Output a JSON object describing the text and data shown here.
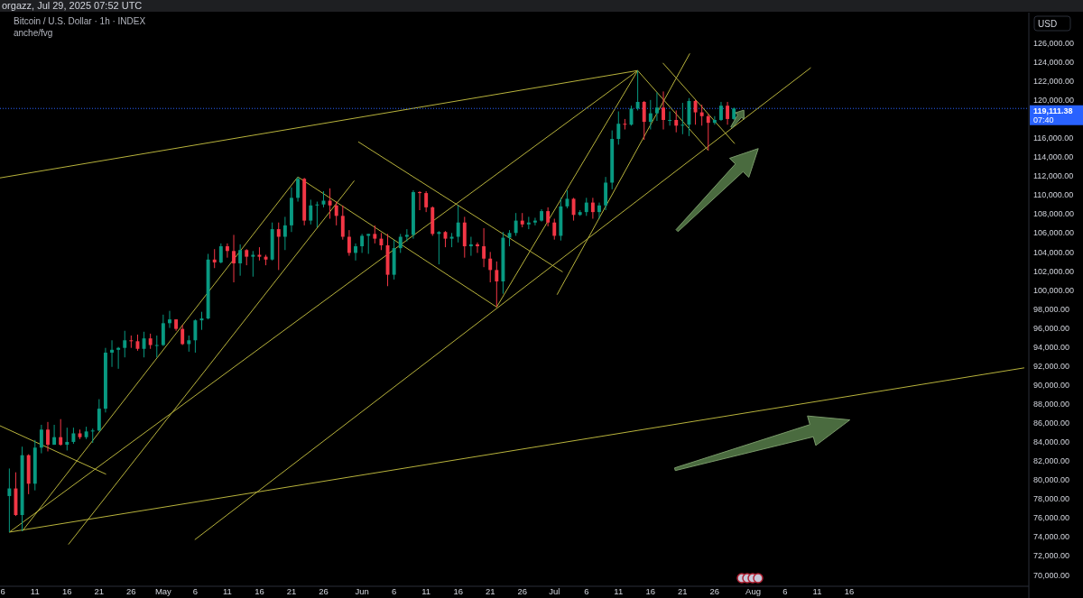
{
  "chart_data": {
    "type": "candlestick",
    "title": "Bitcoin / U.S. Dollar · 1h · INDEX",
    "subtitle": "anche/fvg",
    "ylabel": "USD",
    "annotations": [
      "orgazz, Jul 29, 2025 07:52 UTC",
      "07:40"
    ],
    "x": [
      "2025-04-07",
      "2025-04-08",
      "2025-04-09",
      "2025-04-10",
      "2025-04-11",
      "2025-04-12",
      "2025-04-13",
      "2025-04-14",
      "2025-04-15",
      "2025-04-16",
      "2025-04-17",
      "2025-04-18",
      "2025-04-19",
      "2025-04-20",
      "2025-04-21",
      "2025-04-22",
      "2025-04-23",
      "2025-04-24",
      "2025-04-25",
      "2025-04-26",
      "2025-04-27",
      "2025-04-28",
      "2025-04-29",
      "2025-04-30",
      "2025-05-01",
      "2025-05-02",
      "2025-05-03",
      "2025-05-04",
      "2025-05-05",
      "2025-05-06",
      "2025-05-07",
      "2025-05-08",
      "2025-05-09",
      "2025-05-10",
      "2025-05-11",
      "2025-05-12",
      "2025-05-13",
      "2025-05-14",
      "2025-05-15",
      "2025-05-16",
      "2025-05-17",
      "2025-05-18",
      "2025-05-19",
      "2025-05-20",
      "2025-05-21",
      "2025-05-22",
      "2025-05-23",
      "2025-05-24",
      "2025-05-25",
      "2025-05-26",
      "2025-05-27",
      "2025-05-28",
      "2025-05-29",
      "2025-05-30",
      "2025-05-31",
      "2025-06-01",
      "2025-06-02",
      "2025-06-03",
      "2025-06-04",
      "2025-06-05",
      "2025-06-06",
      "2025-06-07",
      "2025-06-08",
      "2025-06-09",
      "2025-06-10",
      "2025-06-11",
      "2025-06-12",
      "2025-06-13",
      "2025-06-14",
      "2025-06-15",
      "2025-06-16",
      "2025-06-17",
      "2025-06-18",
      "2025-06-19",
      "2025-06-20",
      "2025-06-21",
      "2025-06-22",
      "2025-06-23",
      "2025-06-24",
      "2025-06-25",
      "2025-06-26",
      "2025-06-27",
      "2025-06-28",
      "2025-06-29",
      "2025-06-30",
      "2025-07-01",
      "2025-07-02",
      "2025-07-03",
      "2025-07-04",
      "2025-07-05",
      "2025-07-06",
      "2025-07-07",
      "2025-07-08",
      "2025-07-09",
      "2025-07-10",
      "2025-07-11",
      "2025-07-12",
      "2025-07-13",
      "2025-07-14",
      "2025-07-15",
      "2025-07-16",
      "2025-07-17",
      "2025-07-18",
      "2025-07-19",
      "2025-07-20",
      "2025-07-21",
      "2025-07-22",
      "2025-07-23",
      "2025-07-24",
      "2025-07-25",
      "2025-07-26",
      "2025-07-27",
      "2025-07-28",
      "2025-07-29"
    ],
    "ohlc": [
      [
        78300,
        81200,
        74500,
        79100
      ],
      [
        79100,
        80800,
        76200,
        76300
      ],
      [
        76300,
        83500,
        74600,
        82600
      ],
      [
        82600,
        82700,
        78500,
        79600
      ],
      [
        79600,
        84200,
        78900,
        83400
      ],
      [
        83400,
        85800,
        82800,
        85300
      ],
      [
        85300,
        86100,
        83000,
        83700
      ],
      [
        83700,
        85800,
        83700,
        84500
      ],
      [
        84500,
        86400,
        83600,
        83700
      ],
      [
        83700,
        85500,
        83100,
        84000
      ],
      [
        84000,
        85500,
        83800,
        84900
      ],
      [
        84900,
        85300,
        84300,
        84500
      ],
      [
        84500,
        85600,
        84300,
        85100
      ],
      [
        85100,
        85400,
        83900,
        85200
      ],
      [
        85200,
        88500,
        85100,
        87500
      ],
      [
        87500,
        93900,
        87100,
        93400
      ],
      [
        93400,
        94700,
        91900,
        93700
      ],
      [
        93700,
        94000,
        91700,
        93900
      ],
      [
        93900,
        95700,
        92900,
        94700
      ],
      [
        94700,
        95200,
        93900,
        94600
      ],
      [
        94600,
        95300,
        93600,
        93800
      ],
      [
        93800,
        95600,
        92900,
        94900
      ],
      [
        94900,
        95400,
        93800,
        94200
      ],
      [
        94200,
        95200,
        92900,
        94200
      ],
      [
        94200,
        97400,
        94100,
        96500
      ],
      [
        96500,
        97800,
        96000,
        96900
      ],
      [
        96900,
        96900,
        95700,
        95900
      ],
      [
        95900,
        96300,
        94200,
        94300
      ],
      [
        94300,
        95200,
        93500,
        94700
      ],
      [
        94700,
        96900,
        93400,
        96800
      ],
      [
        96800,
        97700,
        95800,
        97000
      ],
      [
        97000,
        103800,
        96900,
        103200
      ],
      [
        103200,
        104300,
        102300,
        102900
      ],
      [
        102900,
        104900,
        102800,
        104600
      ],
      [
        104600,
        104900,
        103400,
        104100
      ],
      [
        104100,
        105800,
        100800,
        102800
      ],
      [
        102800,
        104800,
        101500,
        104200
      ],
      [
        104200,
        104300,
        102600,
        103500
      ],
      [
        103500,
        104100,
        101400,
        103700
      ],
      [
        103700,
        104500,
        103100,
        103500
      ],
      [
        103500,
        103700,
        102600,
        103200
      ],
      [
        103200,
        107100,
        103100,
        106400
      ],
      [
        106400,
        107100,
        102100,
        105600
      ],
      [
        105600,
        107700,
        104200,
        106800
      ],
      [
        106800,
        110800,
        106100,
        109700
      ],
      [
        109700,
        111900,
        109300,
        111700
      ],
      [
        111700,
        111800,
        106800,
        107300
      ],
      [
        107300,
        109500,
        106900,
        108900
      ],
      [
        108900,
        109300,
        106600,
        109000
      ],
      [
        109000,
        110400,
        108700,
        109400
      ],
      [
        109400,
        110700,
        107500,
        108900
      ],
      [
        108900,
        109300,
        106800,
        107800
      ],
      [
        107800,
        108900,
        105300,
        105600
      ],
      [
        105600,
        106300,
        103600,
        103900
      ],
      [
        103900,
        104900,
        103100,
        104600
      ],
      [
        104600,
        105900,
        103900,
        105700
      ],
      [
        105700,
        105900,
        103800,
        105900
      ],
      [
        105900,
        106800,
        104900,
        105400
      ],
      [
        105400,
        106000,
        104200,
        104700
      ],
      [
        104700,
        105900,
        100400,
        101600
      ],
      [
        101600,
        105300,
        101100,
        104400
      ],
      [
        104400,
        105900,
        103900,
        105600
      ],
      [
        105600,
        106400,
        105100,
        105800
      ],
      [
        105800,
        110500,
        105400,
        110300
      ],
      [
        110300,
        110400,
        108400,
        110200
      ],
      [
        110200,
        110400,
        108200,
        108700
      ],
      [
        108700,
        108800,
        105700,
        105900
      ],
      [
        105900,
        106200,
        102700,
        106100
      ],
      [
        106100,
        106200,
        104500,
        105400
      ],
      [
        105400,
        106000,
        104500,
        105600
      ],
      [
        105600,
        108900,
        105000,
        107100
      ],
      [
        107100,
        107700,
        103400,
        104600
      ],
      [
        104600,
        105600,
        103600,
        104800
      ],
      [
        104800,
        105000,
        103900,
        104600
      ],
      [
        104600,
        106500,
        102400,
        103300
      ],
      [
        103300,
        104000,
        100800,
        102100
      ],
      [
        102100,
        103000,
        98200,
        100900
      ],
      [
        100900,
        106100,
        99600,
        105500
      ],
      [
        105500,
        106300,
        104600,
        106000
      ],
      [
        106000,
        108100,
        105700,
        107300
      ],
      [
        107300,
        108100,
        106600,
        106900
      ],
      [
        106900,
        107700,
        106400,
        107100
      ],
      [
        107100,
        107600,
        106800,
        107300
      ],
      [
        107300,
        108500,
        107200,
        108300
      ],
      [
        108300,
        108700,
        106700,
        107100
      ],
      [
        107100,
        107500,
        105300,
        105700
      ],
      [
        105700,
        109700,
        105200,
        108800
      ],
      [
        108800,
        110500,
        108600,
        109600
      ],
      [
        109600,
        109700,
        107300,
        107900
      ],
      [
        107900,
        108400,
        107800,
        108200
      ],
      [
        108200,
        109700,
        107800,
        109200
      ],
      [
        109200,
        109700,
        107500,
        108200
      ],
      [
        108200,
        109200,
        107500,
        108900
      ],
      [
        108900,
        111900,
        108400,
        111300
      ],
      [
        111300,
        116800,
        110600,
        115900
      ],
      [
        115900,
        118800,
        115300,
        117500
      ],
      [
        117500,
        118000,
        116900,
        117400
      ],
      [
        117400,
        119400,
        117300,
        119100
      ],
      [
        119100,
        123100,
        118900,
        119800
      ],
      [
        119800,
        119900,
        115800,
        117700
      ],
      [
        117700,
        120000,
        116900,
        118600
      ],
      [
        118600,
        120800,
        117800,
        119200
      ],
      [
        119200,
        120900,
        116900,
        117900
      ],
      [
        117900,
        118800,
        117300,
        117900
      ],
      [
        117900,
        118900,
        116600,
        117300
      ],
      [
        117300,
        119700,
        116400,
        117400
      ],
      [
        117400,
        120200,
        116200,
        119900
      ],
      [
        119900,
        120000,
        117400,
        118700
      ],
      [
        118700,
        119500,
        117300,
        118300
      ],
      [
        118300,
        118500,
        114700,
        117600
      ],
      [
        117600,
        118300,
        117400,
        117900
      ],
      [
        117900,
        119800,
        117800,
        119400
      ],
      [
        119400,
        119800,
        117400,
        118000
      ],
      [
        118000,
        119200,
        117900,
        119111.38
      ]
    ],
    "series": [
      {
        "type": "line",
        "color": "#b8b33c",
        "x": [
          "2025-04-05T13:00",
          "2025-07-14"
        ],
        "values": [
          111800,
          123100
        ]
      },
      {
        "type": "line",
        "color": "#b8b33c",
        "x": [
          "2025-04-07",
          "2025-07-14"
        ],
        "values": [
          74500,
          123100
        ]
      },
      {
        "type": "line",
        "color": "#b8b33c",
        "x": [
          "2025-04-07",
          "2025-09-12T07:00"
        ],
        "values": [
          74500,
          91800
        ]
      },
      {
        "type": "line",
        "color": "#b8b33c",
        "x": [
          "2025-04-09",
          "2025-05-22"
        ],
        "values": [
          74600,
          111900
        ]
      },
      {
        "type": "line",
        "color": "#b8b33c",
        "x": [
          "2025-04-16T05:00",
          "2025-05-30T19:00"
        ],
        "values": [
          73200,
          111500
        ]
      },
      {
        "type": "line",
        "color": "#b8b33c",
        "x": [
          "2025-05-05T22:00",
          "2025-08-10"
        ],
        "values": [
          73700,
          123400
        ]
      },
      {
        "type": "line",
        "color": "#b8b33c",
        "x": [
          "2025-04-05T13:00",
          "2025-04-22T02:00"
        ],
        "values": [
          85700,
          80600
        ]
      },
      {
        "type": "line",
        "color": "#b8b33c",
        "x": [
          "2025-05-22",
          "2025-06-22"
        ],
        "values": [
          111900,
          98200
        ]
      },
      {
        "type": "line",
        "color": "#b8b33c",
        "x": [
          "2025-05-31T10:00",
          "2025-07-02T07:00"
        ],
        "values": [
          115600,
          101900
        ]
      },
      {
        "type": "line",
        "color": "#b8b33c",
        "x": [
          "2025-06-22",
          "2025-07-14"
        ],
        "values": [
          98200,
          123100
        ]
      },
      {
        "type": "line",
        "color": "#b8b33c",
        "x": [
          "2025-07-01T10:00",
          "2025-07-22T03:00"
        ],
        "values": [
          99500,
          124900
        ]
      },
      {
        "type": "line",
        "color": "#b8b33c",
        "x": [
          "2025-07-14",
          "2025-07-25"
        ],
        "values": [
          123100,
          114700
        ]
      },
      {
        "type": "line",
        "color": "#b8b33c",
        "x": [
          "2025-07-17T22:00",
          "2025-07-29T03:00"
        ],
        "values": [
          123900,
          115400
        ]
      }
    ],
    "ref_lines": [
      {
        "axis": "y",
        "value": 119111.38,
        "label": "119,111.38",
        "color": "#2962ff",
        "line_style": "dotted"
      }
    ],
    "xlim": [
      "2025-04-05T13:00",
      "2025-09-13"
    ],
    "xticks": [
      {
        "value": "2025-04-06",
        "label": "6"
      },
      {
        "value": "2025-04-11",
        "label": "11"
      },
      {
        "value": "2025-04-16",
        "label": "16"
      },
      {
        "value": "2025-04-21",
        "label": "21"
      },
      {
        "value": "2025-04-26",
        "label": "26"
      },
      {
        "value": "2025-05-01",
        "label": "May"
      },
      {
        "value": "2025-05-06",
        "label": "6"
      },
      {
        "value": "2025-05-11",
        "label": "11"
      },
      {
        "value": "2025-05-16",
        "label": "16"
      },
      {
        "value": "2025-05-21",
        "label": "21"
      },
      {
        "value": "2025-05-26",
        "label": "26"
      },
      {
        "value": "2025-06-01",
        "label": "Jun"
      },
      {
        "value": "2025-06-06",
        "label": "6"
      },
      {
        "value": "2025-06-11",
        "label": "11"
      },
      {
        "value": "2025-06-16",
        "label": "16"
      },
      {
        "value": "2025-06-21",
        "label": "21"
      },
      {
        "value": "2025-06-26",
        "label": "26"
      },
      {
        "value": "2025-07-01",
        "label": "Jul"
      },
      {
        "value": "2025-07-06",
        "label": "6"
      },
      {
        "value": "2025-07-11",
        "label": "11"
      },
      {
        "value": "2025-07-16",
        "label": "16"
      },
      {
        "value": "2025-07-21",
        "label": "21"
      },
      {
        "value": "2025-07-26",
        "label": "26"
      },
      {
        "value": "2025-08-01",
        "label": "Aug"
      },
      {
        "value": "2025-08-06",
        "label": "6"
      },
      {
        "value": "2025-08-11",
        "label": "11"
      },
      {
        "value": "2025-08-16",
        "label": "16"
      }
    ],
    "ylim": [
      68800,
      129200
    ],
    "yticks": [
      {
        "value": 70000,
        "label": "70,000.00"
      },
      {
        "value": 72000,
        "label": "72,000.00"
      },
      {
        "value": 74000,
        "label": "74,000.00"
      },
      {
        "value": 76000,
        "label": "76,000.00"
      },
      {
        "value": 78000,
        "label": "78,000.00"
      },
      {
        "value": 80000,
        "label": "80,000.00"
      },
      {
        "value": 82000,
        "label": "82,000.00"
      },
      {
        "value": 84000,
        "label": "84,000.00"
      },
      {
        "value": 86000,
        "label": "86,000.00"
      },
      {
        "value": 88000,
        "label": "88,000.00"
      },
      {
        "value": 90000,
        "label": "90,000.00"
      },
      {
        "value": 92000,
        "label": "92,000.00"
      },
      {
        "value": 94000,
        "label": "94,000.00"
      },
      {
        "value": 96000,
        "label": "96,000.00"
      },
      {
        "value": 98000,
        "label": "98,000.00"
      },
      {
        "value": 100000,
        "label": "100,000.00"
      },
      {
        "value": 102000,
        "label": "102,000.00"
      },
      {
        "value": 104000,
        "label": "104,000.00"
      },
      {
        "value": 106000,
        "label": "106,000.00"
      },
      {
        "value": 108000,
        "label": "108,000.00"
      },
      {
        "value": 110000,
        "label": "110,000.00"
      },
      {
        "value": 112000,
        "label": "112,000.00"
      },
      {
        "value": 114000,
        "label": "114,000.00"
      },
      {
        "value": 116000,
        "label": "116,000.00"
      },
      {
        "value": 120000,
        "label": "120,000.00"
      },
      {
        "value": 122000,
        "label": "122,000.00"
      },
      {
        "value": 124000,
        "label": "124,000.00"
      },
      {
        "value": 126000,
        "label": "126,000.00"
      }
    ]
  }
}
